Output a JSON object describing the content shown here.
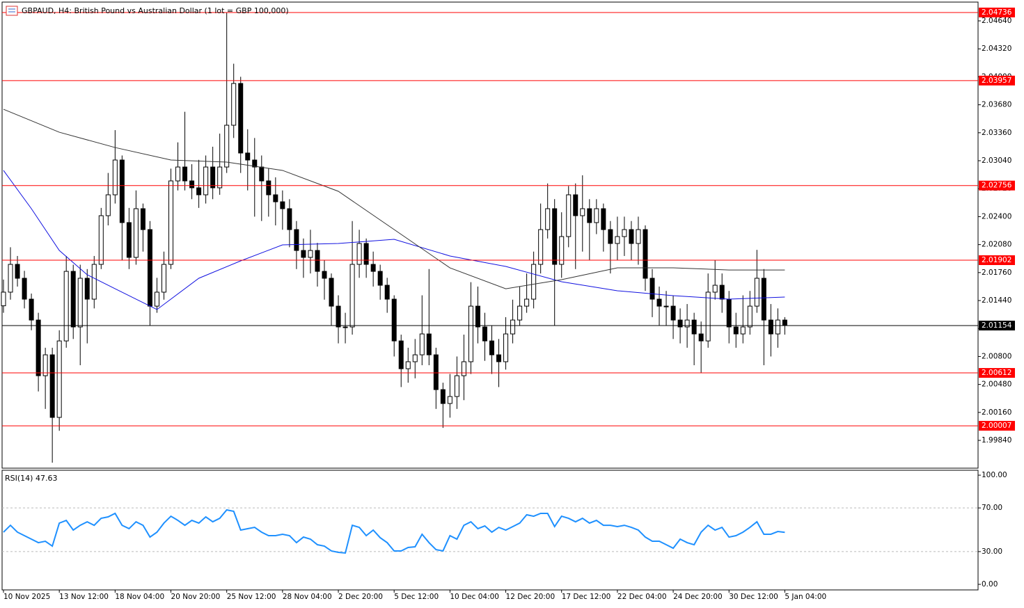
{
  "chart_data": [
    {
      "type": "candlestick",
      "title": "GBPAUD, H4:  British Pound vs Australian Dollar (1 lot = GBP 100,000)",
      "xlim": [
        -0.2,
        139.7
      ],
      "ylim": [
        1.99522,
        2.04855
      ],
      "yticks": [
        {
          "value": 2.0464,
          "label": "2.04640"
        },
        {
          "value": 2.0432,
          "label": "2.04320"
        },
        {
          "value": 2.04,
          "label": "2.04000"
        },
        {
          "value": 2.0368,
          "label": "2.03680"
        },
        {
          "value": 2.0336,
          "label": "2.03360"
        },
        {
          "value": 2.0304,
          "label": "2.03040"
        },
        {
          "value": 2.0272,
          "label": "2.02720"
        },
        {
          "value": 2.024,
          "label": "2.02400"
        },
        {
          "value": 2.0208,
          "label": "2.02080"
        },
        {
          "value": 2.0176,
          "label": "2.01760"
        },
        {
          "value": 2.0144,
          "label": "2.01440"
        },
        {
          "value": 2.0112,
          "label": "2.01120"
        },
        {
          "value": 2.008,
          "label": "2.00800"
        },
        {
          "value": 2.0048,
          "label": "2.00480"
        },
        {
          "value": 2.0016,
          "label": "2.00160"
        },
        {
          "value": 1.9984,
          "label": "1.99840"
        }
      ],
      "up_color": "#ffffff",
      "down_color": "#000000",
      "wick_color": "#000000",
      "open": [
        2.0138,
        2.01536,
        2.01854,
        2.01695,
        2.01456,
        2.01217,
        2.0058,
        2.00819,
        2.00103,
        2.00978,
        2.01774,
        2.01138,
        2.01695,
        2.01456,
        2.01854,
        2.02411,
        2.0265,
        2.03048,
        2.02332,
        2.01934,
        2.02491,
        2.02252,
        2.01376,
        2.01536,
        2.01854,
        2.02809,
        2.02968,
        2.02809,
        2.0273,
        2.0265,
        2.02968,
        2.0273,
        2.02968,
        2.03446,
        2.03924,
        2.03128,
        2.03048,
        2.02968,
        2.02809,
        2.0265,
        2.0257,
        2.02491,
        2.02252,
        2.02013,
        2.01934,
        2.02013,
        2.01774,
        2.01695,
        2.01376,
        2.01138,
        2.01138,
        2.01854,
        2.02093,
        2.01854,
        2.01774,
        2.01615,
        2.01456,
        2.00978,
        2.0066,
        2.0074,
        2.00819,
        2.01058,
        2.00819,
        2.00421,
        2.00262,
        2.00342,
        2.0058,
        2.0074,
        2.01376,
        2.01138,
        2.00978,
        2.00819,
        2.0074,
        2.01058,
        2.01217,
        2.01376,
        2.01456,
        2.01854,
        2.02252,
        2.02491,
        2.01854,
        2.02172,
        2.0265,
        2.02411,
        2.02491,
        2.02332,
        2.02491,
        2.02252,
        2.02093,
        2.02172,
        2.02252,
        2.02093,
        2.02252,
        2.01695,
        2.01456,
        2.01376,
        2.01376,
        2.01217,
        2.01138,
        2.01217,
        2.01058,
        2.00978,
        2.01536,
        2.01615,
        2.01456,
        2.01138,
        2.01058,
        2.01138,
        2.01376,
        2.01695,
        2.01217,
        2.01058,
        2.01217
      ],
      "high": [
        2.0168,
        2.0205,
        2.0195,
        2.0178,
        2.0152,
        2.013,
        2.009,
        2.009,
        2.011,
        2.0195,
        2.0185,
        2.0185,
        2.018,
        2.0195,
        2.025,
        2.029,
        2.0339,
        2.031,
        2.025,
        2.027,
        2.0255,
        2.0235,
        2.017,
        2.02,
        2.0295,
        2.0325,
        2.036,
        2.03,
        2.0305,
        2.031,
        2.032,
        2.0335,
        2.04736,
        2.0415,
        2.04,
        2.034,
        2.033,
        2.031,
        2.0295,
        2.0285,
        2.027,
        2.026,
        2.0235,
        2.0215,
        2.0225,
        2.021,
        2.019,
        2.0175,
        2.015,
        2.013,
        2.0235,
        2.0225,
        2.0215,
        2.02,
        2.0185,
        2.017,
        2.015,
        2.0105,
        2.009,
        2.01,
        2.015,
        2.018,
        2.009,
        2.005,
        2.006,
        2.008,
        2.0105,
        2.0165,
        2.016,
        2.013,
        2.0115,
        2.01,
        2.0125,
        2.0145,
        2.016,
        2.0175,
        2.02,
        2.0255,
        2.0278,
        2.026,
        2.0245,
        2.0275,
        2.0278,
        2.02873,
        2.026,
        2.026,
        2.0255,
        2.0235,
        2.024,
        2.024,
        2.0235,
        2.024,
        2.023,
        2.018,
        2.016,
        2.0155,
        2.015,
        2.0135,
        2.014,
        2.013,
        2.012,
        2.0175,
        2.01902,
        2.0175,
        2.0155,
        2.013,
        2.015,
        2.0155,
        2.0202,
        2.018,
        2.014,
        2.0135,
        2.0125
      ],
      "low": [
        2.013,
        2.0145,
        2.016,
        2.0135,
        2.011,
        2.004,
        2.002,
        1.99585,
        1.9995,
        2.009,
        2.01,
        2.007,
        2.0095,
        2.0135,
        2.018,
        2.023,
        2.0255,
        2.019,
        2.018,
        2.0185,
        2.02,
        2.0115,
        2.013,
        2.0145,
        2.018,
        2.027,
        2.027,
        2.026,
        2.025,
        2.0255,
        2.026,
        2.0265,
        2.029,
        2.033,
        2.029,
        2.027,
        2.024,
        2.0235,
        2.024,
        2.023,
        2.0225,
        2.0205,
        2.018,
        2.017,
        2.0175,
        2.016,
        2.0145,
        2.0115,
        2.0095,
        2.0095,
        2.0105,
        2.017,
        2.017,
        2.016,
        2.0145,
        2.013,
        2.008,
        2.0045,
        2.005,
        2.0055,
        2.007,
        2.007,
        2.002,
        1.99983,
        2.001,
        2.002,
        2.003,
        2.006,
        2.0095,
        2.0075,
        2.006,
        2.0045,
        2.0065,
        2.0095,
        2.0115,
        2.013,
        2.0135,
        2.0175,
        2.0215,
        2.0115,
        2.017,
        2.0205,
        2.018,
        2.02,
        2.019,
        2.022,
        2.02,
        2.0175,
        2.019,
        2.0195,
        2.019,
        2.0185,
        2.0155,
        2.0125,
        2.0115,
        2.0115,
        2.01,
        2.0095,
        2.009,
        2.007,
        2.00612,
        2.009,
        2.0145,
        2.013,
        2.0095,
        2.009,
        2.0095,
        2.0105,
        2.013,
        2.007,
        2.008,
        2.009,
        2.0105
      ],
      "close": [
        2.01536,
        2.01854,
        2.01695,
        2.01456,
        2.01217,
        2.0058,
        2.00819,
        2.00103,
        2.00978,
        2.01774,
        2.01138,
        2.01695,
        2.01456,
        2.01854,
        2.02411,
        2.0265,
        2.03048,
        2.02332,
        2.01934,
        2.02491,
        2.02252,
        2.01376,
        2.01536,
        2.01854,
        2.02809,
        2.02968,
        2.02809,
        2.0273,
        2.0265,
        2.02968,
        2.0273,
        2.02968,
        2.03446,
        2.03924,
        2.03128,
        2.03048,
        2.02968,
        2.02809,
        2.0265,
        2.0257,
        2.02491,
        2.02252,
        2.02013,
        2.01934,
        2.02013,
        2.01774,
        2.01695,
        2.01376,
        2.01138,
        2.01138,
        2.01854,
        2.02093,
        2.01854,
        2.01774,
        2.01615,
        2.01456,
        2.00978,
        2.0066,
        2.0074,
        2.00819,
        2.01058,
        2.00819,
        2.00421,
        2.00262,
        2.00342,
        2.0058,
        2.0074,
        2.01376,
        2.01138,
        2.00978,
        2.00819,
        2.0074,
        2.01058,
        2.01217,
        2.01376,
        2.01456,
        2.01854,
        2.02252,
        2.02491,
        2.01854,
        2.02172,
        2.0265,
        2.02411,
        2.02491,
        2.02332,
        2.02491,
        2.02252,
        2.02093,
        2.02172,
        2.02252,
        2.02093,
        2.02252,
        2.01695,
        2.01456,
        2.01376,
        2.01376,
        2.01217,
        2.01138,
        2.01217,
        2.01058,
        2.00978,
        2.01536,
        2.01615,
        2.01456,
        2.01138,
        2.01058,
        2.01138,
        2.01376,
        2.01695,
        2.01217,
        2.01058,
        2.01217,
        2.01154
      ],
      "lines": [
        {
          "color": "#1010e0",
          "x": [
            0,
            4,
            8,
            12,
            16,
            22,
            28,
            34,
            40,
            48,
            56,
            64,
            72,
            80,
            88,
            96,
            104,
            112
          ],
          "values": [
            2.02929,
            2.02491,
            2.02013,
            2.01735,
            2.01575,
            2.01337,
            2.01695,
            2.01894,
            2.02077,
            2.02093,
            2.02141,
            2.0195,
            2.0183,
            2.01655,
            2.01552,
            2.01496,
            2.01456,
            2.0148
          ]
        },
        {
          "color": "#333333",
          "x": [
            0,
            8,
            16,
            24,
            32,
            40,
            48,
            56,
            64,
            72,
            80,
            88,
            96,
            104,
            112
          ],
          "values": [
            2.03629,
            2.03366,
            2.03191,
            2.03048,
            2.03024,
            2.02929,
            2.0269,
            2.02252,
            2.01814,
            2.01575,
            2.01679,
            2.01814,
            2.01814,
            2.0179,
            2.0179
          ]
        }
      ],
      "hlines": [
        {
          "value": 2.04736,
          "color": "#ff0000"
        },
        {
          "value": 2.03957,
          "color": "#ff0000"
        },
        {
          "value": 2.02756,
          "color": "#ff0000"
        },
        {
          "value": 2.01902,
          "color": "#ff0000"
        },
        {
          "value": 2.01154,
          "color": "#000000"
        },
        {
          "value": 2.00612,
          "color": "#ff0000"
        },
        {
          "value": 2.00007,
          "color": "#ff0000"
        }
      ]
    },
    {
      "type": "line",
      "title": "RSI(14) 47.63",
      "color": "#1e90ff",
      "xlim": [
        -0.2,
        139.7
      ],
      "ylim": [
        -5.1,
        104.5
      ],
      "yticks": [
        {
          "value": 100,
          "label": "100.00"
        },
        {
          "value": 70,
          "label": "70.00"
        },
        {
          "value": 30,
          "label": "30.00"
        },
        {
          "value": 0,
          "label": "0.00"
        }
      ],
      "levels": [
        70,
        30
      ],
      "xticks": [
        {
          "value": 0,
          "label": "10 Nov 2025"
        },
        {
          "value": 8,
          "label": "13 Nov 12:00"
        },
        {
          "value": 16,
          "label": "18 Nov 04:00"
        },
        {
          "value": 24,
          "label": "20 Nov 20:00"
        },
        {
          "value": 32,
          "label": "25 Nov 12:00"
        },
        {
          "value": 40,
          "label": "28 Nov 04:00"
        },
        {
          "value": 48,
          "label": "2 Dec 20:00"
        },
        {
          "value": 56,
          "label": "5 Dec 12:00"
        },
        {
          "value": 64,
          "label": "10 Dec 04:00"
        },
        {
          "value": 72,
          "label": "12 Dec 20:00"
        },
        {
          "value": 80,
          "label": "17 Dec 12:00"
        },
        {
          "value": 88,
          "label": "22 Dec 04:00"
        },
        {
          "value": 96,
          "label": "24 Dec 20:00"
        },
        {
          "value": 104,
          "label": "30 Dec 12:00"
        },
        {
          "value": 112,
          "label": "5 Jan 04:00"
        }
      ],
      "values": [
        47.8,
        54.1,
        47.8,
        44.6,
        41.4,
        38.2,
        39.5,
        35.0,
        56.1,
        58.6,
        49.7,
        54.1,
        57.3,
        54.1,
        60.5,
        61.8,
        65.0,
        54.1,
        51.0,
        57.3,
        54.1,
        43.3,
        47.8,
        56.1,
        62.4,
        58.6,
        54.1,
        58.6,
        56.1,
        61.8,
        57.3,
        60.5,
        68.2,
        66.9,
        49.7,
        51.0,
        52.2,
        47.8,
        44.6,
        44.6,
        45.9,
        44.6,
        38.2,
        43.3,
        41.4,
        36.3,
        35.0,
        30.6,
        29.3,
        28.7,
        54.1,
        52.2,
        44.6,
        49.7,
        42.7,
        38.2,
        30.6,
        30.6,
        33.8,
        34.4,
        45.9,
        38.2,
        31.8,
        30.6,
        44.6,
        41.4,
        54.1,
        57.3,
        51.0,
        53.5,
        47.8,
        52.2,
        49.7,
        52.9,
        56.1,
        63.7,
        62.4,
        65.0,
        65.0,
        52.9,
        62.4,
        60.5,
        57.3,
        60.5,
        56.1,
        58.6,
        54.1,
        54.1,
        52.9,
        54.1,
        52.2,
        49.7,
        43.3,
        39.5,
        39.5,
        36.3,
        33.1,
        41.4,
        38.2,
        36.3,
        47.8,
        54.1,
        49.7,
        52.2,
        43.3,
        44.6,
        47.8,
        52.2,
        57.3,
        45.9,
        45.9,
        48.4,
        47.6
      ]
    }
  ]
}
